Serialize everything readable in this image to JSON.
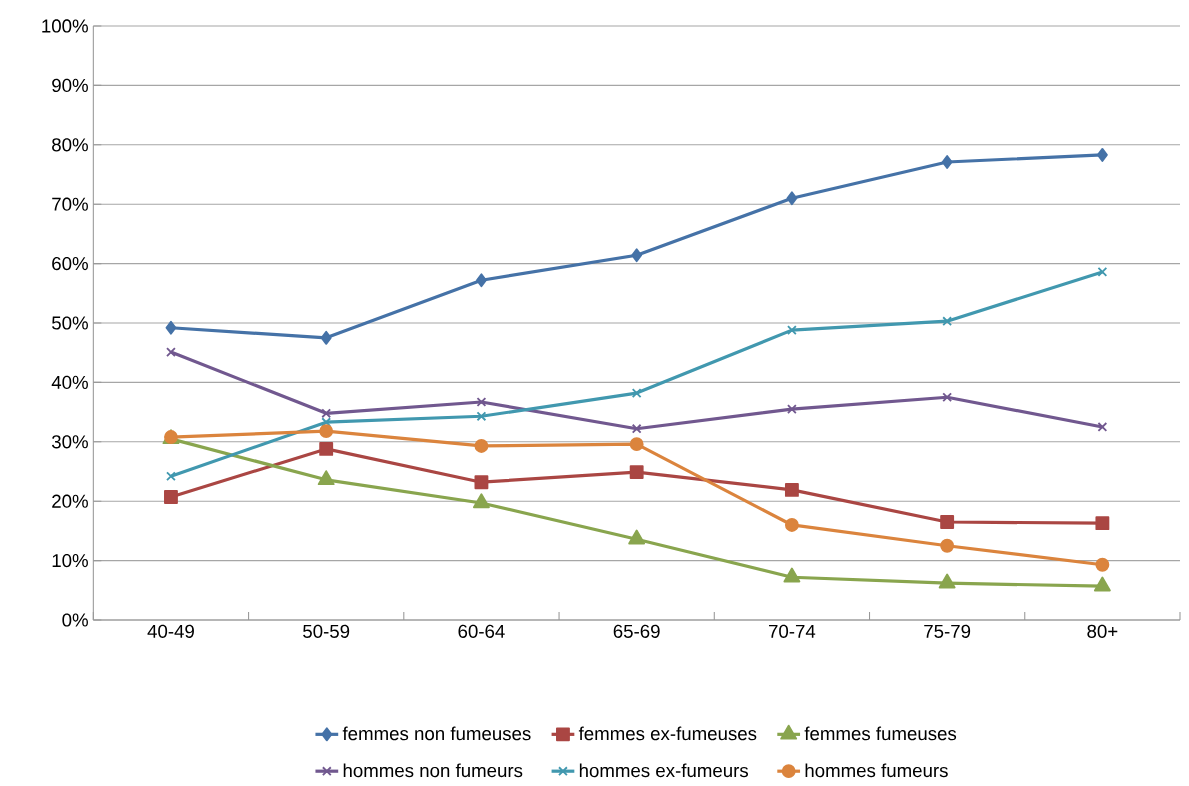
{
  "chart_data": {
    "type": "line",
    "categories": [
      "40-49",
      "50-59",
      "60-64",
      "65-69",
      "70-74",
      "75-79",
      "80+"
    ],
    "ylim": [
      0,
      100
    ],
    "yticks": [
      {
        "value": 0,
        "label": "0%"
      },
      {
        "value": 10,
        "label": "10%"
      },
      {
        "value": 20,
        "label": "20%"
      },
      {
        "value": 30,
        "label": "30%"
      },
      {
        "value": 40,
        "label": "40%"
      },
      {
        "value": 50,
        "label": "50%"
      },
      {
        "value": 60,
        "label": "60%"
      },
      {
        "value": 70,
        "label": "70%"
      },
      {
        "value": 80,
        "label": "80%"
      },
      {
        "value": 90,
        "label": "90%"
      },
      {
        "value": 100,
        "label": "100%"
      }
    ],
    "grid": "y",
    "legend": "bottom",
    "series": [
      {
        "name": "femmes non fumeuses",
        "color": "#4572a7",
        "marker": "diamond",
        "values": [
          49.2,
          47.5,
          57.2,
          61.4,
          71.0,
          77.1,
          78.3
        ]
      },
      {
        "name": "femmes ex-fumeuses",
        "color": "#aa4643",
        "marker": "square",
        "values": [
          20.7,
          28.8,
          23.2,
          24.9,
          21.9,
          16.5,
          16.3
        ]
      },
      {
        "name": "femmes fumeuses",
        "color": "#89a54e",
        "marker": "triangle",
        "values": [
          30.5,
          23.6,
          19.7,
          13.6,
          7.2,
          6.2,
          5.7
        ]
      },
      {
        "name": "hommes non fumeurs",
        "color": "#71588f",
        "marker": "cross",
        "values": [
          45.1,
          34.8,
          36.7,
          32.2,
          35.5,
          37.5,
          32.5
        ]
      },
      {
        "name": "hommes ex-fumeurs",
        "color": "#4198af",
        "marker": "cross",
        "values": [
          24.2,
          33.3,
          34.3,
          38.2,
          48.8,
          50.3,
          58.6
        ]
      },
      {
        "name": "hommes fumeurs",
        "color": "#db843d",
        "marker": "circle",
        "values": [
          30.8,
          31.8,
          29.3,
          29.6,
          16.0,
          12.5,
          9.3
        ]
      }
    ]
  }
}
